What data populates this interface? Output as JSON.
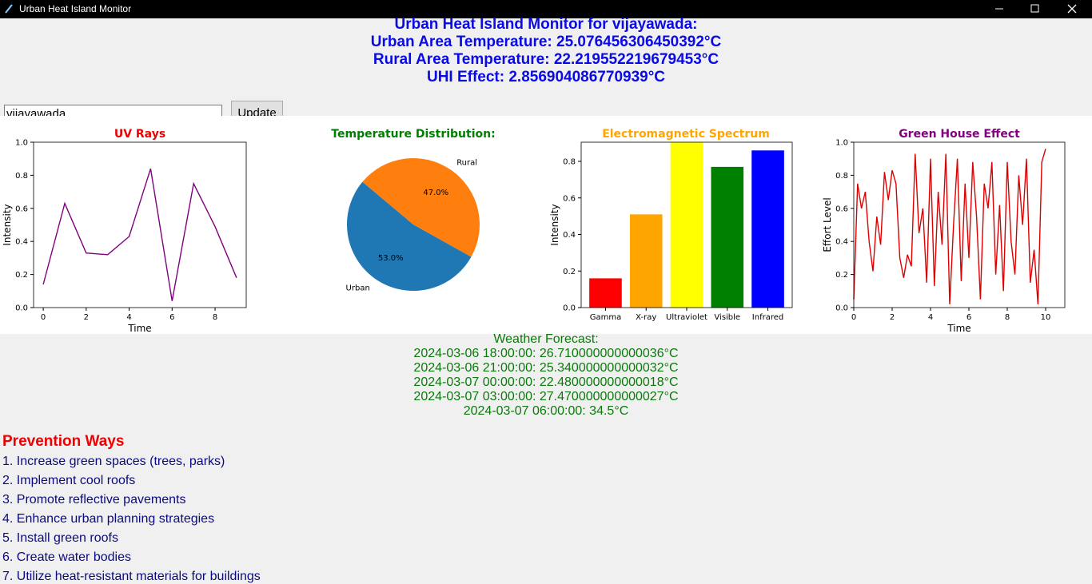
{
  "window": {
    "title": "Urban Heat Island Monitor"
  },
  "header": {
    "lines": [
      "Urban Heat Island Monitor for vijayawada:",
      "Urban Area Temperature: 25.076456306450392°C",
      "Rural Area Temperature: 22.219552219679453°C",
      "UHI Effect: 2.856904086770939°C"
    ]
  },
  "input": {
    "value": "vijayawada"
  },
  "button": {
    "label": "Update"
  },
  "chart_data": [
    {
      "type": "line",
      "title": "UV Rays",
      "title_color": "#ee0000",
      "x_label": "Time",
      "y_label": "Intensity",
      "color": "#800080",
      "x": [
        0,
        1,
        2,
        3,
        4,
        5,
        6,
        7,
        8,
        9
      ],
      "values": [
        0.14,
        0.63,
        0.33,
        0.32,
        0.43,
        0.84,
        0.04,
        0.75,
        0.49,
        0.18
      ],
      "xlim": [
        -0.45,
        9.45
      ],
      "xticks": [
        0,
        2,
        4,
        6,
        8
      ],
      "ylim": [
        0,
        1
      ],
      "yticks": [
        {
          "value": 0,
          "label": "0.0"
        },
        0.2,
        0.4,
        0.6,
        0.8,
        {
          "value": 1,
          "label": "1.0"
        }
      ]
    },
    {
      "type": "pie",
      "title": "Temperature Distribution:",
      "title_color": "#008000",
      "categories": [
        "Urban",
        "Rural"
      ],
      "values": [
        53,
        47
      ],
      "value_labels": [
        "53.0%",
        "47.0%"
      ],
      "colors": [
        "#1f77b4",
        "#ff7f0e"
      ],
      "start_angle": 140
    },
    {
      "type": "bar",
      "title": "Electromagnetic Spectrum",
      "title_color": "#ffa500",
      "y_label": "Intensity",
      "categories": [
        "Gamma",
        "X-ray",
        "Ultraviolet",
        "Visible",
        "Infrared"
      ],
      "values": [
        0.16,
        0.51,
        0.95,
        0.77,
        0.86
      ],
      "colors": [
        "#ff0000",
        "#ffa500",
        "#ffff00",
        "#008000",
        "#0000ff"
      ],
      "ylim": [
        0,
        0.905
      ],
      "yticks": [
        {
          "value": 0,
          "label": "0.0"
        },
        0.2,
        0.4,
        0.6,
        0.8
      ]
    },
    {
      "type": "line",
      "title": "Green House Effect",
      "title_color": "#800080",
      "x_label": "Time",
      "y_label": "Effort Level",
      "color": "#dd0000",
      "x": [
        0,
        0.2,
        0.4,
        0.6,
        0.8,
        1,
        1.2,
        1.4,
        1.6,
        1.8,
        2,
        2.2,
        2.4,
        2.6,
        2.8,
        3,
        3.2,
        3.4,
        3.6,
        3.8,
        4,
        4.2,
        4.4,
        4.6,
        4.8,
        5,
        5.2,
        5.4,
        5.6,
        5.8,
        6,
        6.2,
        6.4,
        6.6,
        6.8,
        7,
        7.2,
        7.4,
        7.6,
        7.8,
        8,
        8.2,
        8.4,
        8.6,
        8.8,
        9,
        9.2,
        9.4,
        9.6,
        9.8,
        10
      ],
      "values": [
        0.05,
        0.75,
        0.6,
        0.7,
        0.4,
        0.22,
        0.55,
        0.38,
        0.82,
        0.65,
        0.83,
        0.75,
        0.3,
        0.18,
        0.32,
        0.25,
        0.93,
        0.45,
        0.6,
        0.15,
        0.9,
        0.13,
        0.7,
        0.38,
        0.93,
        0.02,
        0.5,
        0.9,
        0.16,
        0.75,
        0.3,
        0.88,
        0.55,
        0.05,
        0.75,
        0.6,
        0.88,
        0.2,
        0.62,
        0.1,
        0.88,
        0.4,
        0.2,
        0.8,
        0.5,
        0.9,
        0.15,
        0.35,
        0.02,
        0.88,
        0.96
      ],
      "xlim": [
        0,
        11
      ],
      "xticks": [
        0,
        2,
        4,
        6,
        8,
        10
      ],
      "ylim": [
        0,
        1
      ],
      "yticks": [
        {
          "value": 0,
          "label": "0.0"
        },
        0.2,
        0.4,
        0.6,
        0.8,
        {
          "value": 1,
          "label": "1.0"
        }
      ]
    }
  ],
  "forecast": {
    "title": "Weather Forecast:",
    "items": [
      "2024-03-06 18:00:00: 26.710000000000036°C",
      "2024-03-06 21:00:00: 25.340000000000032°C",
      "2024-03-07 00:00:00: 22.480000000000018°C",
      "2024-03-07 03:00:00: 27.470000000000027°C",
      "2024-03-07 06:00:00: 34.5°C"
    ]
  },
  "prevention": {
    "title": "Prevention Ways",
    "items": [
      "1. Increase green spaces (trees, parks)",
      "2. Implement cool roofs",
      "3. Promote reflective pavements",
      "4. Enhance urban planning strategies",
      "5. Install green roofs",
      "6. Create water bodies",
      "7. Utilize heat-resistant materials for buildings"
    ]
  }
}
